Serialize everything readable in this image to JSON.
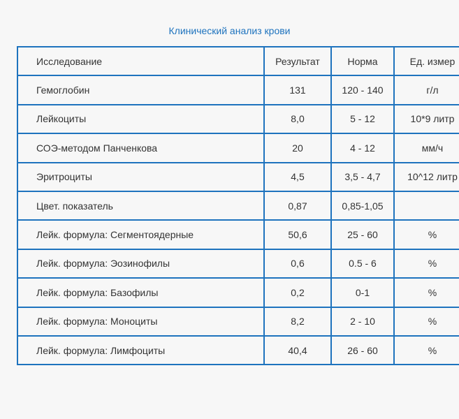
{
  "title": "Клинический анализ крови",
  "table": {
    "headers": [
      "Исследование",
      "Результат",
      "Норма",
      "Ед. измер"
    ],
    "rows": [
      [
        "Гемоглобин",
        "131",
        "120 - 140",
        "г/л"
      ],
      [
        "Лейкоциты",
        "8,0",
        "5 - 12",
        "10*9 литр"
      ],
      [
        "СОЭ-методом Панченкова",
        "20",
        "4 - 12",
        "мм/ч"
      ],
      [
        "Эритроциты",
        "4,5",
        "3,5 - 4,7",
        "10^12 литр"
      ],
      [
        "Цвет. показатель",
        "0,87",
        "0,85-1,05",
        ""
      ],
      [
        "Лейк. формула: Сегментоядерные",
        "50,6",
        "25 - 60",
        "%"
      ],
      [
        "Лейк. формула: Эозинофилы",
        "0,6",
        "0.5 - 6",
        "%"
      ],
      [
        "Лейк. формула: Базофилы",
        "0,2",
        "0-1",
        "%"
      ],
      [
        "Лейк. формула: Моноциты",
        "8,2",
        "2 - 10",
        "%"
      ],
      [
        "Лейк. формула: Лимфоциты",
        "40,4",
        "26 - 60",
        "%"
      ]
    ]
  },
  "colors": {
    "border": "#1e73be",
    "title": "#1e73be",
    "text": "#333333",
    "background": "#f7f7f7"
  }
}
